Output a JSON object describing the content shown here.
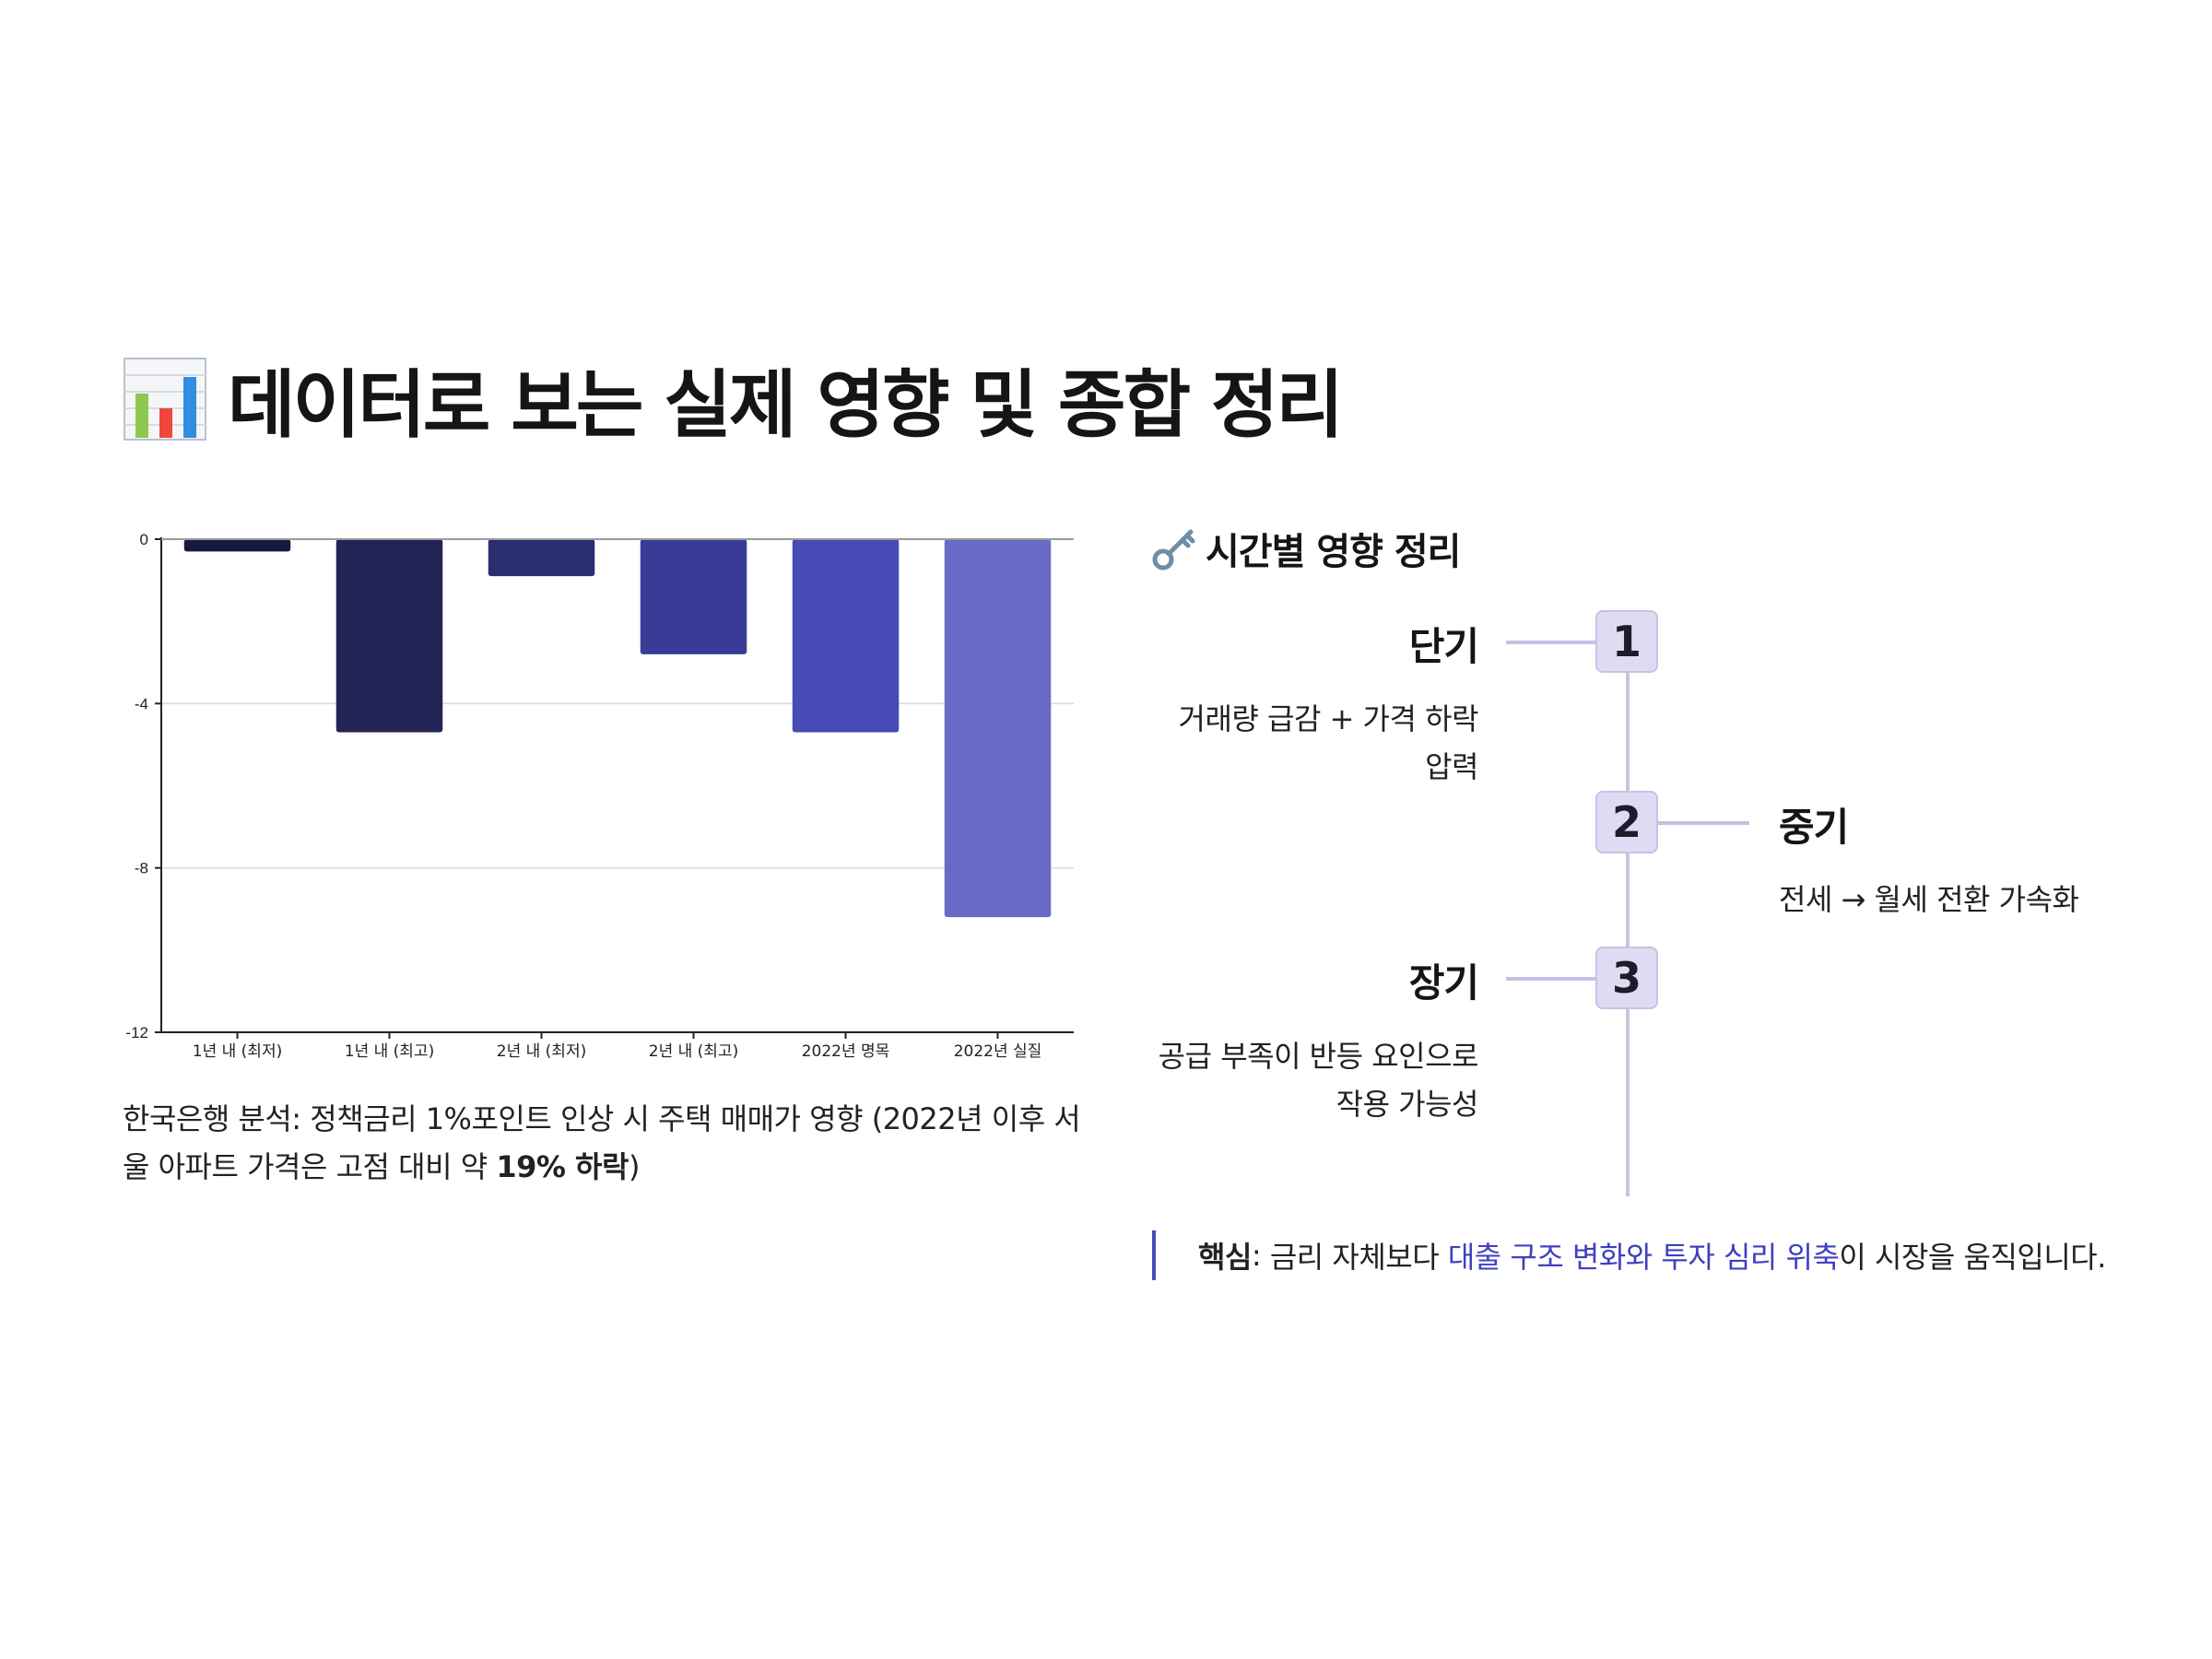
{
  "title": {
    "icon": "bar-chart-icon",
    "text": "데이터로 보는 실제 영향 및 종합 정리"
  },
  "chart_data": {
    "type": "bar",
    "categories": [
      "1년 내 (최저)",
      "1년 내 (최고)",
      "2년 내 (최저)",
      "2년 내 (최고)",
      "2022년 명목",
      "2022년 실질"
    ],
    "values": [
      -0.3,
      -4.7,
      -0.9,
      -2.8,
      -4.7,
      -9.2
    ],
    "ylim": [
      -12,
      0
    ],
    "yticks": [
      "0",
      "-4",
      "-8",
      "-12"
    ],
    "title": "",
    "xlabel": "",
    "ylabel": "",
    "grid": true,
    "legend": "none",
    "colors": [
      "#171a40",
      "#222455",
      "#2a2d70",
      "#383c97",
      "#464bb5",
      "#686bc5"
    ]
  },
  "caption": {
    "text_before": "한국은행 분석: 정책금리 1%포인트 인상 시 주택 매매가 영향 (2022년 이후 서울 아파트 가격은 고점 대비 약 ",
    "bold": "19% 하락",
    "text_after": ")"
  },
  "timeline": {
    "icon": "key-icon",
    "heading": "시간별 영향 정리",
    "steps": [
      {
        "number": "1",
        "title": "단기",
        "desc_line1": "거래량 급감 + 가격 하락",
        "desc_line2": "압력"
      },
      {
        "number": "2",
        "title": "중기",
        "desc_line1": "전세 → 월세 전환 가속화",
        "desc_line2": ""
      },
      {
        "number": "3",
        "title": "장기",
        "desc_line1": "공급 부족이 반등 요인으로",
        "desc_line2": "작용 가능성"
      }
    ],
    "keypoint": {
      "label": "핵심",
      "colon": ": ",
      "text_before": "금리 자체보다 ",
      "highlight": "대출 구조 변화와 투자 심리 위축",
      "text_after": "이 시장을 움직입니다."
    },
    "colors": {
      "accent": "#4a4ab8",
      "badge_fill": "#dedcf3"
    }
  }
}
